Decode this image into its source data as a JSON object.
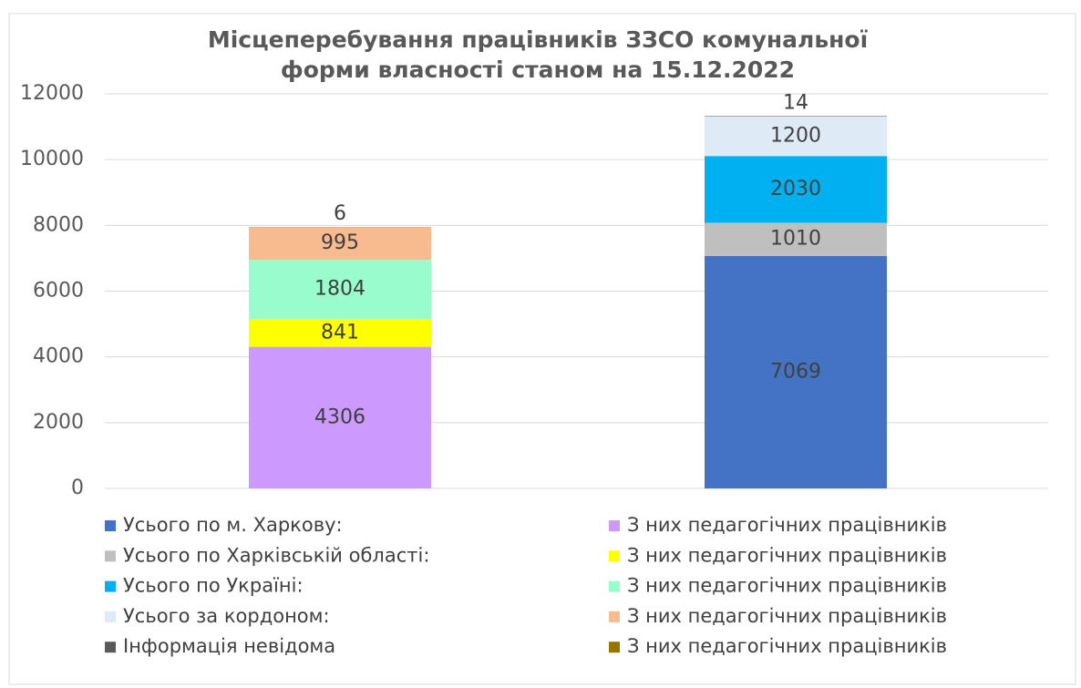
{
  "chart_data": {
    "type": "stacked_bar",
    "title": [
      "Місцеперебування працівників ЗЗСО комунальної",
      "форми власності станом на 15.12.2022"
    ],
    "categories": [
      null,
      null
    ],
    "series": [
      {
        "name": "Усього по м. Харкову:",
        "color": "#4472c4",
        "values": [
          null,
          7069
        ]
      },
      {
        "name": "З них педагогічних працівників",
        "color": "#cc99ff",
        "values": [
          4306,
          null
        ]
      },
      {
        "name": "Усього по Харківській області:",
        "color": "#bfbfbf",
        "values": [
          null,
          1010
        ]
      },
      {
        "name": "З них педагогічних працівників",
        "color": "#ffff00",
        "values": [
          841,
          null
        ]
      },
      {
        "name": "Усього по Україні:",
        "color": "#00b0f0",
        "values": [
          null,
          2030
        ]
      },
      {
        "name": "З них педагогічних працівників",
        "color": "#99fccc",
        "values": [
          1804,
          null
        ]
      },
      {
        "name": "Усього за кордоном:",
        "color": "#deebf7",
        "values": [
          null,
          1200
        ]
      },
      {
        "name": "З них педагогічних працівників",
        "color": "#f8bb8f",
        "values": [
          995,
          null
        ]
      },
      {
        "name": "Інформація невідома",
        "color": "#595959",
        "values": [
          null,
          14
        ]
      },
      {
        "name": "З них педагогічних працівників",
        "color": "#997300",
        "values": [
          6,
          null
        ]
      }
    ],
    "ylim": [
      0,
      12000
    ],
    "yticks": [
      0,
      2000,
      4000,
      6000,
      8000,
      10000,
      12000
    ],
    "grid": true,
    "legend": "bottom"
  }
}
